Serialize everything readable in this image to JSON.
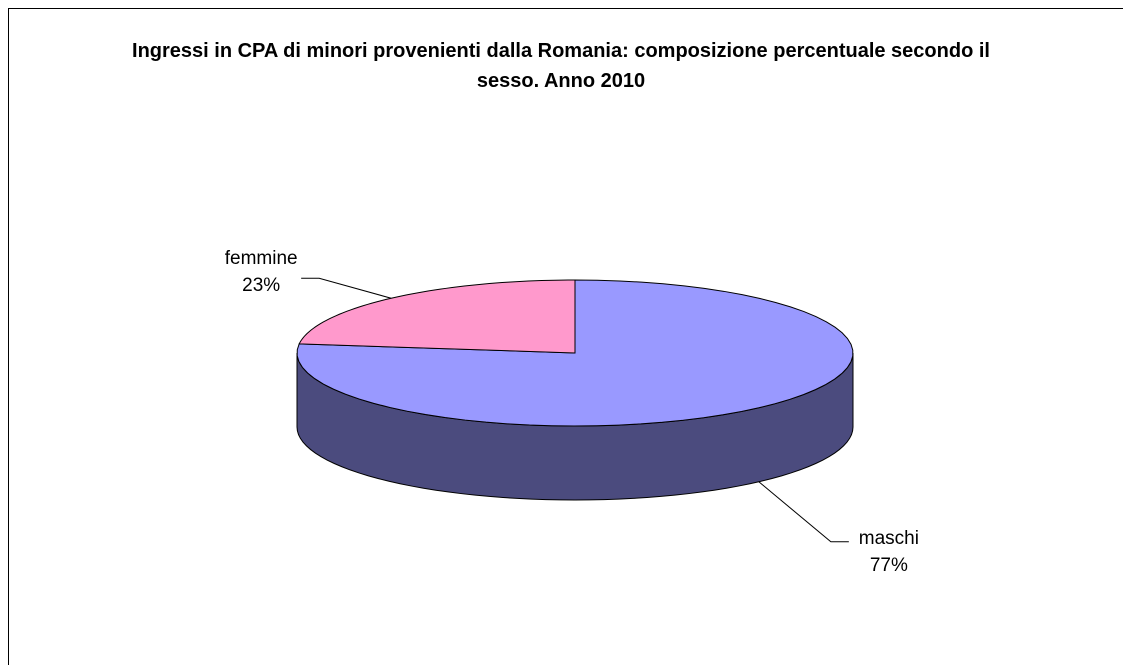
{
  "chart_data": {
    "type": "pie3d",
    "title": "Ingressi in CPA di minori provenienti dalla Romania: composizione percentuale secondo il sesso. Anno 2010",
    "categories": [
      "maschi",
      "femmine"
    ],
    "values": [
      77,
      23
    ],
    "value_labels": [
      "77%",
      "23%"
    ],
    "colors": [
      "#9999ff",
      "#ff99cc"
    ],
    "side_colors": [
      "#4b4b7e",
      "#805066"
    ]
  }
}
